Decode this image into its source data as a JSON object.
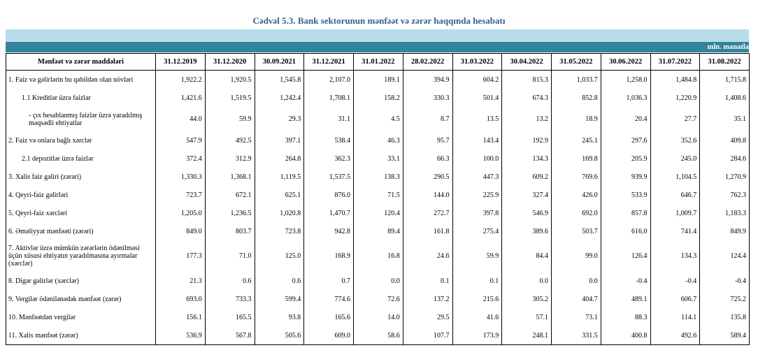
{
  "title": "Cədvəl 5.3. Bank sektorunun mənfəət və zərər haqqında hesabatı",
  "unit": "mln. manatla",
  "header": {
    "label": "Mənfəət və zərər maddələri",
    "dates": [
      "31.12.2019",
      "31.12.2020",
      "30.09.2021",
      "31.12.2021",
      "31.01.2022",
      "28.02.2022",
      "31.03.2022",
      "30.04.2022",
      "31.05.2022",
      "30.06.2022",
      "31.07.2022",
      "31.08.2022"
    ]
  },
  "rows": [
    {
      "label": "1. Faiz və gəlirlərin bu qəbildən olan növləri",
      "indent": 0,
      "values": [
        "1,922.2",
        "1,920.5",
        "1,545.8",
        "2,107.0",
        "189.1",
        "394.9",
        "604.2",
        "815.3",
        "1,033.7",
        "1,258.0",
        "1,484.8",
        "1,715.8"
      ]
    },
    {
      "label": "1.1 Kreditlər üzrə faizlər",
      "indent": 1,
      "values": [
        "1,421.6",
        "1,519.5",
        "1,242.4",
        "1,708.1",
        "158.2",
        "330.3",
        "501.4",
        "674.3",
        "852.8",
        "1,036.3",
        "1,220.9",
        "1,408.6"
      ]
    },
    {
      "label": "- çıx hesablanmış faizlər üzrə yaradılmış məqsədli ehtiyatlar",
      "indent": 2,
      "values": [
        "44.0",
        "59.9",
        "29.3",
        "31.1",
        "4.5",
        "8.7",
        "13.5",
        "13.2",
        "18.9",
        "20.4",
        "27.7",
        "35.1"
      ]
    },
    {
      "label": "2. Faiz və onlara bağlı xərclər",
      "indent": 0,
      "values": [
        "547.9",
        "492.5",
        "397.1",
        "538.4",
        "46.3",
        "95.7",
        "143.4",
        "192.9",
        "245.1",
        "297.6",
        "352.6",
        "409.8"
      ]
    },
    {
      "label": "2.1 depozitlər üzrə faizlər",
      "indent": 1,
      "values": [
        "372.4",
        "312.9",
        "264.8",
        "362.3",
        "33.1",
        "66.3",
        "100.0",
        "134.3",
        "169.8",
        "205.9",
        "245.0",
        "284.6"
      ]
    },
    {
      "label": "3. Xalis faiz gəliri (zərəri)",
      "indent": 0,
      "values": [
        "1,330.3",
        "1,368.1",
        "1,119.5",
        "1,537.5",
        "138.3",
        "290.5",
        "447.3",
        "609.2",
        "769.6",
        "939.9",
        "1,104.5",
        "1,270.9"
      ]
    },
    {
      "label": "4. Qeyri-faiz gəlirləri",
      "indent": 0,
      "values": [
        "723.7",
        "672.1",
        "625.1",
        "876.0",
        "71.5",
        "144.0",
        "225.9",
        "327.4",
        "426.0",
        "533.9",
        "646.7",
        "762.3"
      ]
    },
    {
      "label": "5. Qeyri-faiz xərcləri",
      "indent": 0,
      "values": [
        "1,205.0",
        "1,236.5",
        "1,020.8",
        "1,470.7",
        "120.4",
        "272.7",
        "397.8",
        "546.9",
        "692.0",
        "857.8",
        "1,009.7",
        "1,183.3"
      ]
    },
    {
      "label": "6. Əməliyyat mənfəəti (zərəri)",
      "indent": 0,
      "values": [
        "849.0",
        "803.7",
        "723.8",
        "942.8",
        "89.4",
        "161.8",
        "275.4",
        "389.6",
        "503.7",
        "616.0",
        "741.4",
        "849.9"
      ]
    },
    {
      "label": "7. Aktivlər üzrə mümkün zərərlərin ödənilməsi üçün xüsusi ehtiyatın yaradılmasına ayırmalar (xərclər)",
      "indent": 0,
      "values": [
        "177.3",
        "71.0",
        "125.0",
        "168.9",
        "16.8",
        "24.6",
        "59.9",
        "84.4",
        "99.0",
        "126.4",
        "134.3",
        "124.4"
      ]
    },
    {
      "label": "8. Digər gəlirlər (xərclər)",
      "indent": 0,
      "values": [
        "21.3",
        "0.6",
        "0.6",
        "0.7",
        "0.0",
        "0.1",
        "0.1",
        "0.0",
        "0.0",
        "-0.4",
        "-0.4",
        "-0.4"
      ]
    },
    {
      "label": "9. Vergilər ödənilənədək mənfəət (zərər)",
      "indent": 0,
      "values": [
        "693.0",
        "733.3",
        "599.4",
        "774.6",
        "72.6",
        "137.2",
        "215.6",
        "305.2",
        "404.7",
        "489.1",
        "606.7",
        "725.2"
      ]
    },
    {
      "label": "10. Mənfəətdən vergilər",
      "indent": 0,
      "values": [
        "156.1",
        "165.5",
        "93.8",
        "165.6",
        "14.0",
        "29.5",
        "41.6",
        "57.1",
        "73.1",
        "88.3",
        "114.1",
        "135.8"
      ]
    },
    {
      "label": "11. Xalis mənfəət (zərər)",
      "indent": 0,
      "values": [
        "536.9",
        "567.8",
        "505.6",
        "609.0",
        "58.6",
        "107.7",
        "173.9",
        "248.1",
        "331.5",
        "400.8",
        "492.6",
        "589.4"
      ]
    }
  ]
}
